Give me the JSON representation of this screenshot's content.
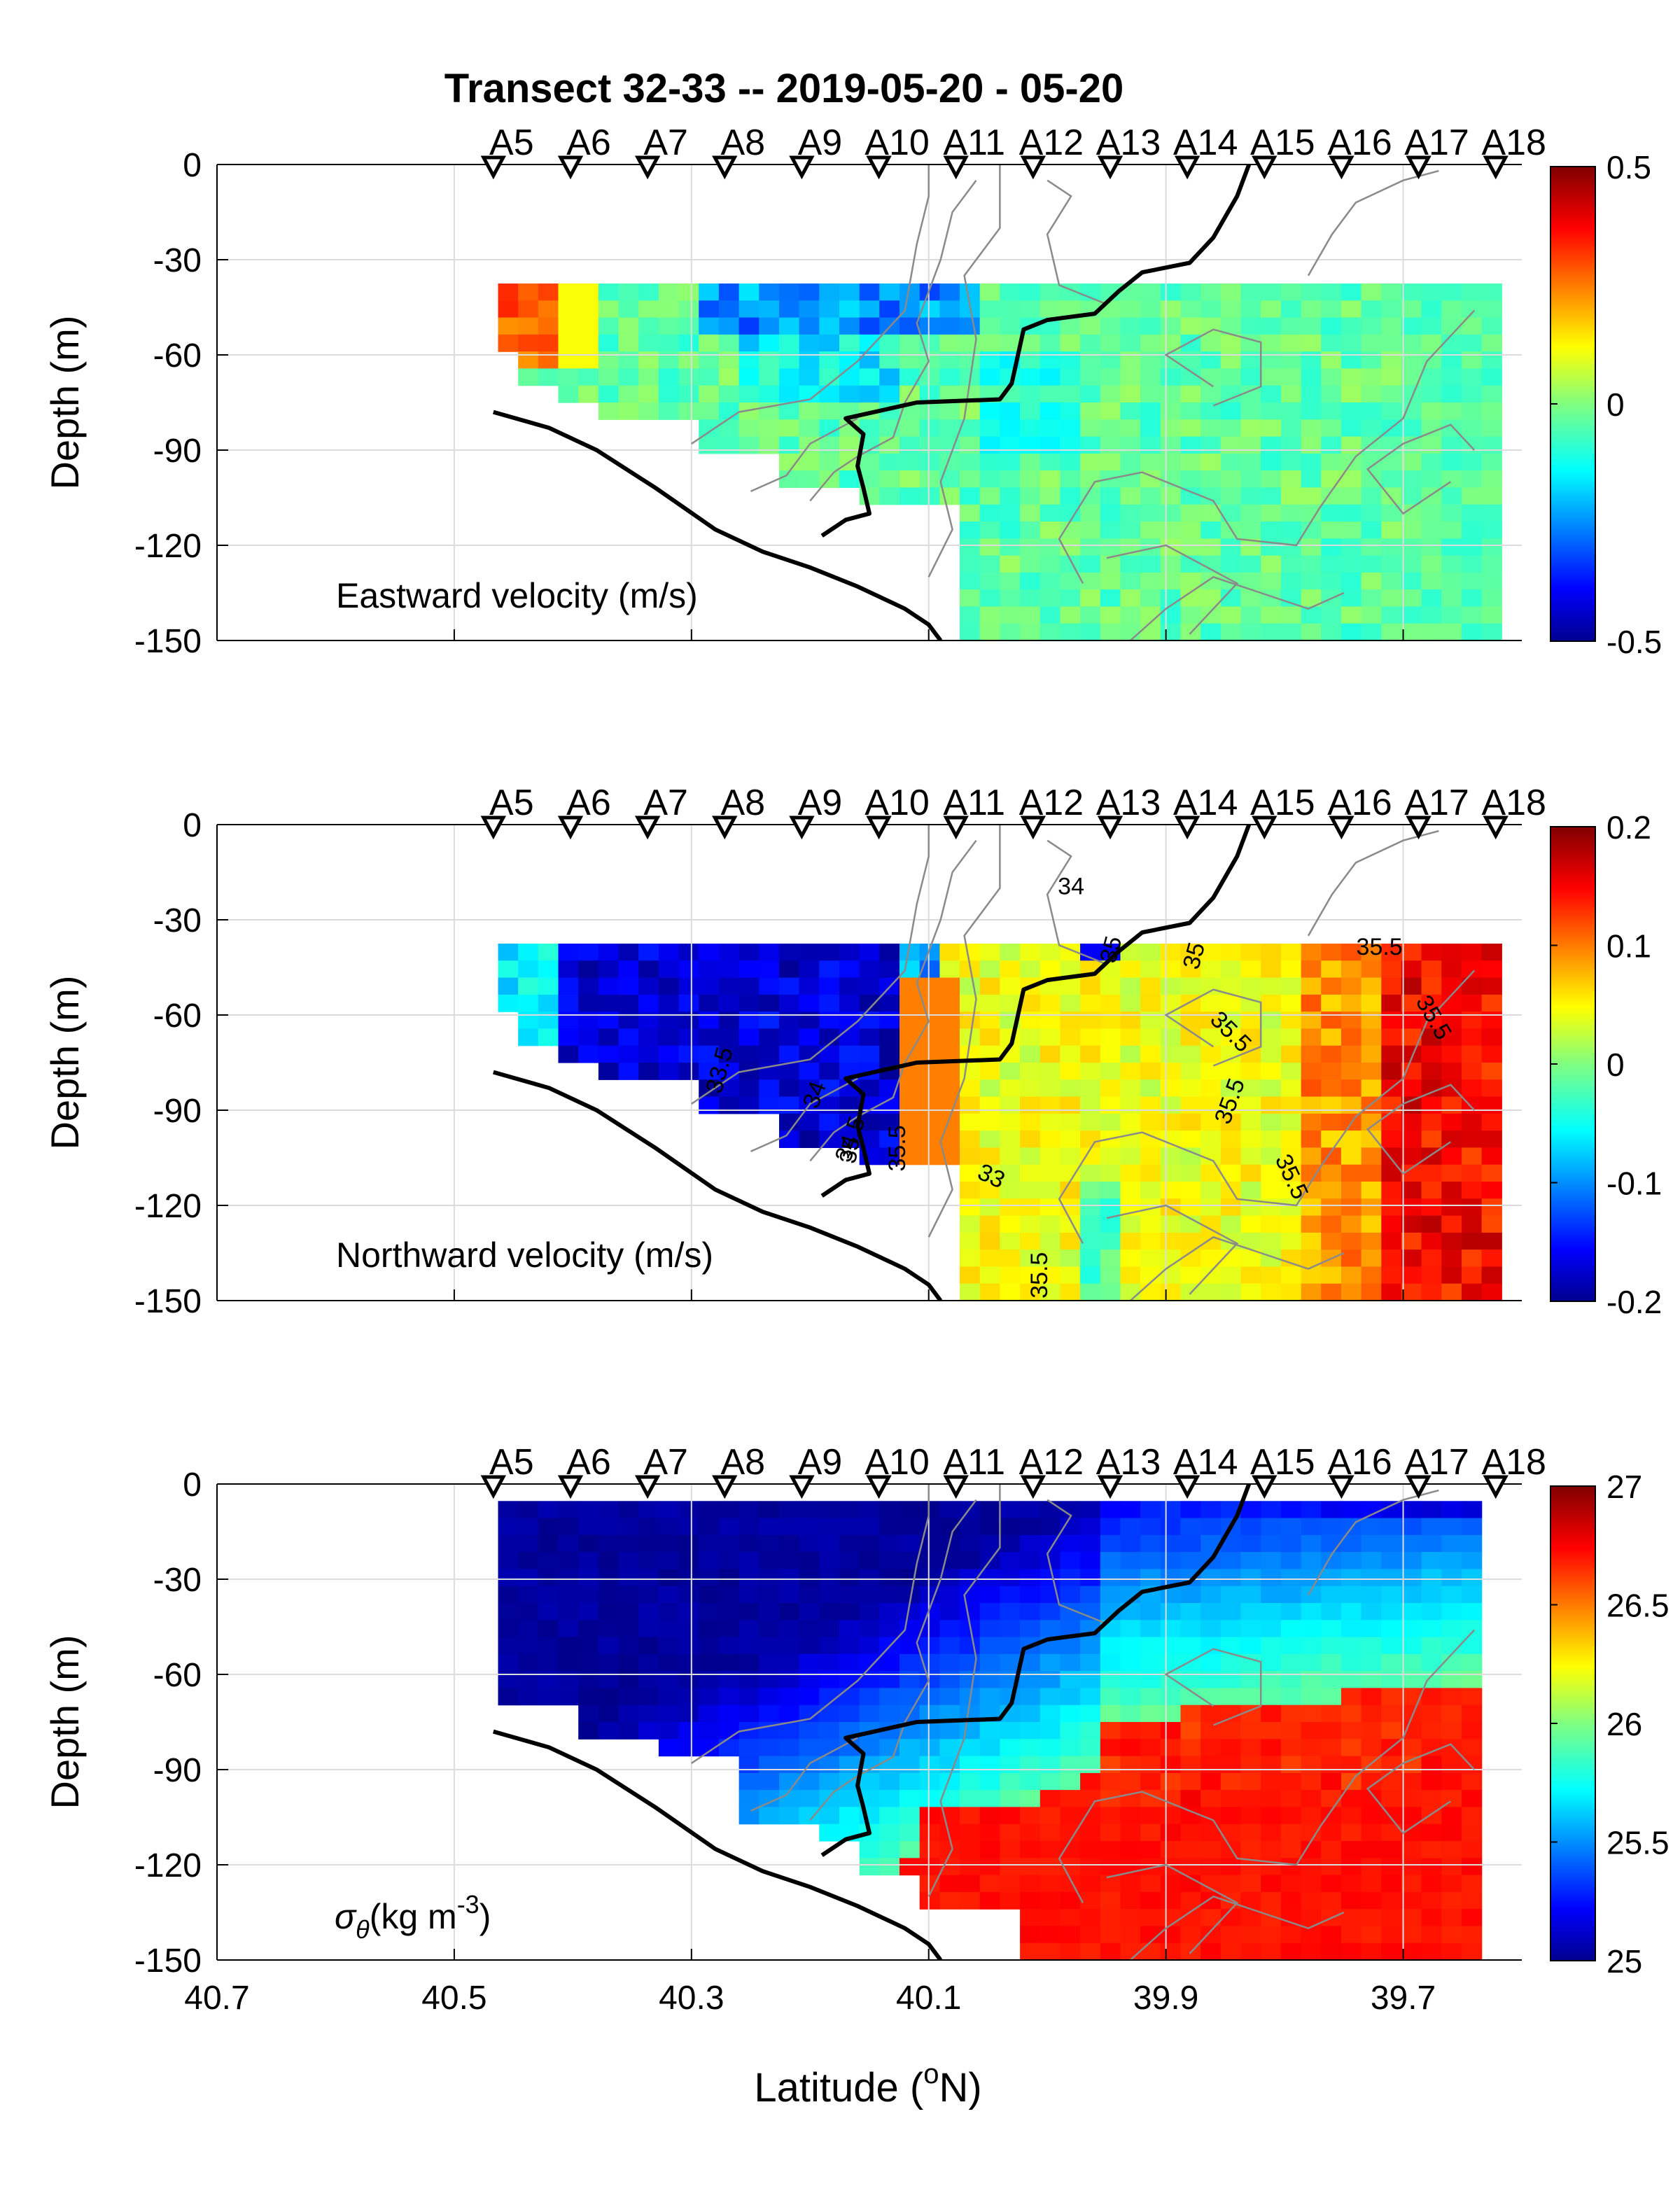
{
  "title": "Transect 32-33 -- 2019-05-20 - 05-20",
  "xlabel": "Latitude (°N)",
  "xlabel_main": "Latitude (",
  "xlabel_sup": "o",
  "xlabel_tail": "N)",
  "ylabel": "Depth (m)",
  "stations": [
    "A5",
    "A6",
    "A7",
    "A8",
    "A9",
    "A10",
    "A11",
    "A12",
    "A13",
    "A14",
    "A15",
    "A16",
    "A17",
    "A18"
  ],
  "colormap": "jet",
  "chart_data": [
    {
      "type": "heatmap",
      "panel": "top",
      "label": "Eastward velocity (m/s)",
      "xlim": [
        40.7,
        39.6
      ],
      "ylim": [
        -150,
        0
      ],
      "xticks": [
        "40.7",
        "40.5",
        "40.3",
        "40.1",
        "39.9",
        "39.7"
      ],
      "yticks": [
        "0",
        "-30",
        "-60",
        "-90",
        "-120",
        "-150"
      ],
      "colorbar": {
        "min": -0.5,
        "max": 0.5,
        "ticks": [
          "0.5",
          "0",
          "-0.5"
        ]
      },
      "grid": true,
      "values_summary": "m/s; ~0.2-0.3 near 40.47N at -40..-60 m, ~-0.4 around 40.1-40.2N at -40 m, ~-0.05..0.05 elsewhere"
    },
    {
      "type": "heatmap",
      "panel": "middle",
      "label": "Northward velocity (m/s)",
      "xlim": [
        40.7,
        39.6
      ],
      "ylim": [
        -150,
        0
      ],
      "xticks": [
        "40.7",
        "40.5",
        "40.3",
        "40.1",
        "39.9",
        "39.7"
      ],
      "yticks": [
        "0",
        "-30",
        "-60",
        "-90",
        "-120",
        "-150"
      ],
      "colorbar": {
        "min": -0.2,
        "max": 0.2,
        "ticks": [
          "0.2",
          "0.1",
          "0",
          "-0.1",
          "-0.2"
        ]
      },
      "contour_labels": [
        "34",
        "35",
        "35.5",
        "35.5",
        "35.5",
        "35.5",
        "35.5",
        "33",
        "33.5",
        "34",
        "34.5",
        "35",
        "35.5",
        "35.5",
        "35"
      ],
      "grid": true,
      "values_summary": "m/s; ~-0.15..-0.2 for 40.2-40.45N, ~0.05 for 39.8-40.05N, ~0.15-0.2 near 39.6-39.75N"
    },
    {
      "type": "heatmap",
      "panel": "bottom",
      "label_main": "σ",
      "label_sub": "θ",
      "label_tail": "(kg m",
      "label_sup": "-3",
      "label_end": ")",
      "xlim": [
        40.7,
        39.6
      ],
      "ylim": [
        -150,
        0
      ],
      "xticks": [
        "40.7",
        "40.5",
        "40.3",
        "40.1",
        "39.9",
        "39.7"
      ],
      "yticks": [
        "0",
        "-30",
        "-60",
        "-90",
        "-120",
        "-150"
      ],
      "colorbar": {
        "min": 25,
        "max": 27,
        "ticks": [
          "27",
          "26.5",
          "26",
          "25.5",
          "25"
        ]
      },
      "grid": true,
      "values_summary": "kg m-3; ~25.1 at surface north, ~26 mid-depth front, ~26.6-26.8 deep south"
    }
  ]
}
